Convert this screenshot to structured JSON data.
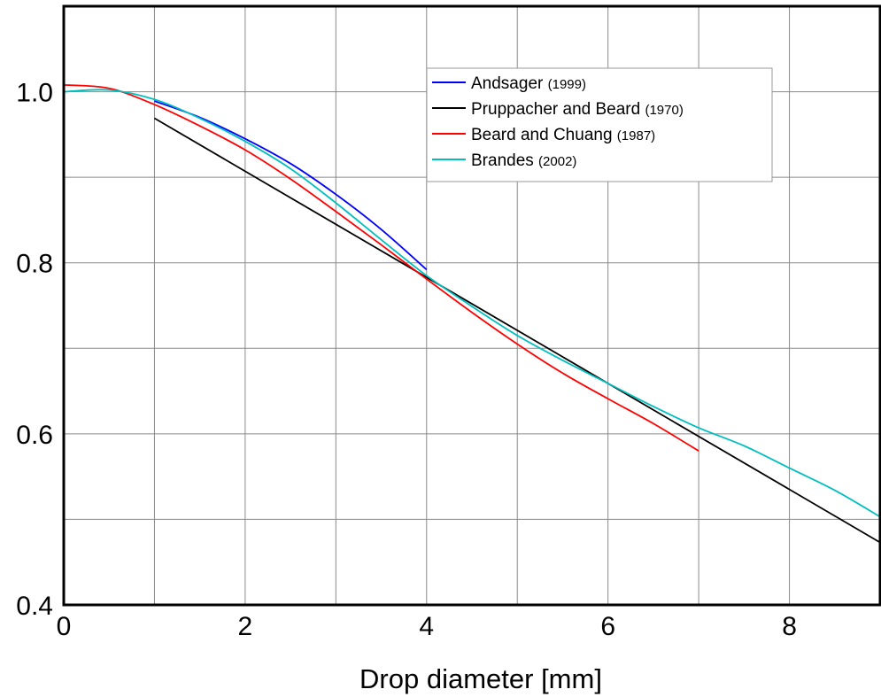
{
  "chart_data": {
    "type": "line",
    "title": "",
    "xlabel": "Drop diameter [mm]",
    "ylabel": "",
    "xlim": [
      0,
      9
    ],
    "ylim": [
      0.4,
      1.1
    ],
    "x_ticks": [
      0,
      2,
      4,
      6,
      8
    ],
    "x_tick_labels": [
      "0",
      "2",
      "4",
      "6",
      "8"
    ],
    "y_ticks": [
      0.4,
      0.6,
      0.8,
      1.0
    ],
    "y_tick_labels": [
      "0.4",
      "0.6",
      "0.8",
      "1.0"
    ],
    "grid": true,
    "legend_position": "top-right",
    "series": [
      {
        "name": "Andsager",
        "year": "(1999)",
        "color": "#0000ff",
        "x": [
          1.0,
          1.5,
          2.0,
          2.5,
          3.0,
          3.5,
          4.0
        ],
        "y": [
          0.989,
          0.97,
          0.945,
          0.916,
          0.88,
          0.839,
          0.792
        ]
      },
      {
        "name": "Pruppacher and Beard",
        "year": "(1970)",
        "color": "#000000",
        "x": [
          1.0,
          9.0
        ],
        "y": [
          0.969,
          0.473
        ]
      },
      {
        "name": "Beard and Chuang",
        "year": "(1987)",
        "color": "#ff0000",
        "x": [
          0.0,
          0.5,
          1.0,
          1.5,
          2.0,
          2.5,
          3.0,
          3.5,
          4.0,
          4.5,
          5.0,
          5.5,
          6.0,
          6.5,
          7.0
        ],
        "y": [
          1.008,
          1.004,
          0.985,
          0.96,
          0.932,
          0.898,
          0.86,
          0.821,
          0.781,
          0.742,
          0.705,
          0.671,
          0.641,
          0.612,
          0.58
        ]
      },
      {
        "name": "Brandes",
        "year": "(2002)",
        "color": "#00bfbf",
        "x": [
          0.0,
          0.5,
          1.0,
          1.5,
          2.0,
          2.5,
          3.0,
          3.5,
          4.0,
          4.5,
          5.0,
          5.5,
          6.0,
          6.5,
          7.0,
          7.5,
          8.0,
          8.5,
          9.0
        ],
        "y": [
          1.0,
          1.002,
          0.991,
          0.969,
          0.942,
          0.91,
          0.87,
          0.827,
          0.785,
          0.749,
          0.715,
          0.686,
          0.659,
          0.632,
          0.607,
          0.586,
          0.56,
          0.534,
          0.503
        ]
      }
    ]
  }
}
